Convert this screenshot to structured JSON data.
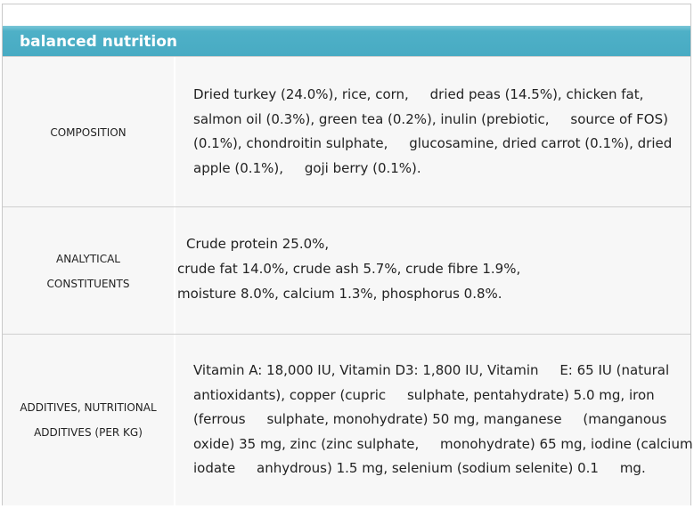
{
  "header": {
    "title": "balanced nutrition"
  },
  "table": {
    "rows": [
      {
        "label": [
          "COMPOSITION"
        ],
        "lines": [
          "Dried turkey (24.0%), rice, corn,     dried peas (14.5%), chicken fat,",
          "salmon oil (0.3%), green tea (0.2%), inulin (prebiotic,     source of FOS)",
          "(0.1%), chondroitin sulphate,     glucosamine, dried carrot (0.1%), dried",
          "apple (0.1%),     goji berry (0.1%)."
        ]
      },
      {
        "label": [
          "ANALYTICAL",
          "CONSTITUENTS"
        ],
        "lines": [
          "Crude protein 25.0%,",
          "crude fat 14.0%, crude ash 5.7%, crude fibre 1.9%,",
          "moisture 8.0%, calcium 1.3%, phosphorus 0.8%."
        ]
      },
      {
        "label": [
          "ADDITIVES, NUTRITIONAL",
          "ADDITIVES (PER KG)"
        ],
        "lines": [
          "Vitamin A: 18,000 IU, Vitamin D3: 1,800 IU, Vitamin     E: 65 IU (natural",
          "antioxidants), copper (cupric     sulphate, pentahydrate) 5.0 mg, iron",
          "(ferrous     sulphate, monohydrate) 50 mg, manganese     (manganous",
          "oxide) 35 mg, zinc (zinc sulphate,     monohydrate) 65 mg, iodine (calcium",
          "iodate     anhydrous) 1.5 mg, selenium (sodium selenite) 0.1     mg."
        ]
      }
    ]
  }
}
